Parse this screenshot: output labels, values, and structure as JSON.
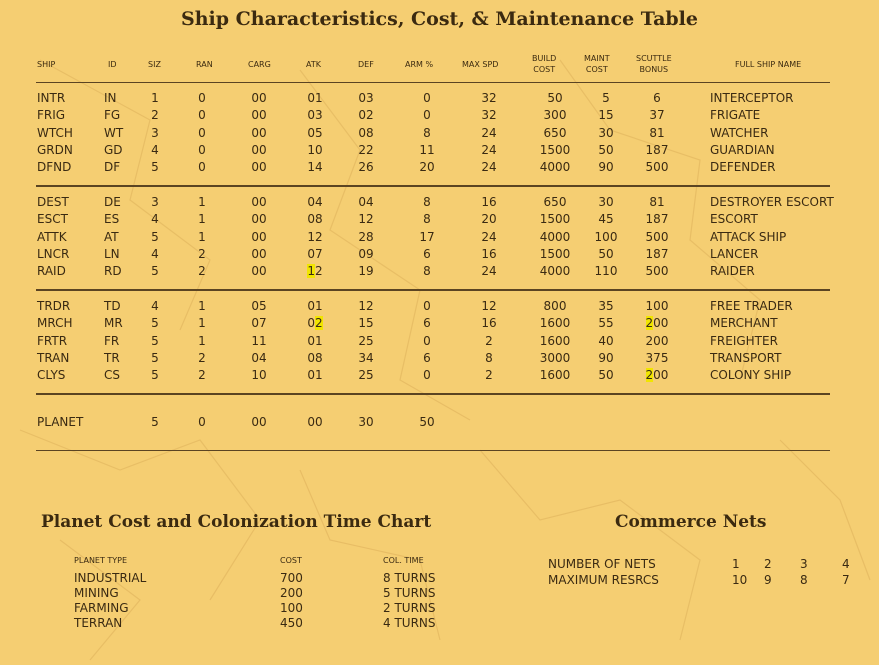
{
  "title": "Ship Characteristics, Cost, & Maintenance Table",
  "headers": {
    "ship": "SHIP",
    "id": "ID",
    "siz": "SIZ",
    "ran": "RAN",
    "carg": "CARG",
    "atk": "ATK",
    "def": "DEF",
    "arm": "ARM %",
    "maxspd": "MAX SPD",
    "build": [
      "BUILD",
      "COST"
    ],
    "maint": [
      "MAINT",
      "COST"
    ],
    "scuttle": [
      "SCUTTLE",
      "BONUS"
    ],
    "fullname": "FULL SHIP NAME"
  },
  "groups": [
    [
      [
        "INTR",
        "IN",
        "1",
        "0",
        "00",
        "01",
        "03",
        "0",
        "32",
        "50",
        "5",
        "6",
        "INTERCEPTOR"
      ],
      [
        "FRIG",
        "FG",
        "2",
        "0",
        "00",
        "03",
        "02",
        "0",
        "32",
        "300",
        "15",
        "37",
        "FRIGATE"
      ],
      [
        "WTCH",
        "WT",
        "3",
        "0",
        "00",
        "05",
        "08",
        "8",
        "24",
        "650",
        "30",
        "81",
        "WATCHER"
      ],
      [
        "GRDN",
        "GD",
        "4",
        "0",
        "00",
        "10",
        "22",
        "11",
        "24",
        "1500",
        "50",
        "187",
        "GUARDIAN"
      ],
      [
        "DFND",
        "DF",
        "5",
        "0",
        "00",
        "14",
        "26",
        "20",
        "24",
        "4000",
        "90",
        "500",
        "DEFENDER"
      ]
    ],
    [
      [
        "DEST",
        "DE",
        "3",
        "1",
        "00",
        "04",
        "04",
        "8",
        "16",
        "650",
        "30",
        "81",
        "DESTROYER ESCORT"
      ],
      [
        "ESCT",
        "ES",
        "4",
        "1",
        "00",
        "08",
        "12",
        "8",
        "20",
        "1500",
        "45",
        "187",
        "ESCORT"
      ],
      [
        "ATTK",
        "AT",
        "5",
        "1",
        "00",
        "12",
        "28",
        "17",
        "24",
        "4000",
        "100",
        "500",
        "ATTACK SHIP"
      ],
      [
        "LNCR",
        "LN",
        "4",
        "2",
        "00",
        "07",
        "09",
        "6",
        "16",
        "1500",
        "50",
        "187",
        "LANCER"
      ],
      [
        "RAID",
        "RD",
        "5",
        "2",
        "00",
        "12",
        "19",
        "8",
        "24",
        "4000",
        "110",
        "500",
        "RAIDER"
      ]
    ],
    [
      [
        "TRDR",
        "TD",
        "4",
        "1",
        "05",
        "01",
        "12",
        "0",
        "12",
        "800",
        "35",
        "100",
        "FREE TRADER"
      ],
      [
        "MRCH",
        "MR",
        "5",
        "1",
        "07",
        "02",
        "15",
        "6",
        "16",
        "1600",
        "55",
        "200",
        "MERCHANT"
      ],
      [
        "FRTR",
        "FR",
        "5",
        "1",
        "11",
        "01",
        "25",
        "0",
        "2",
        "1600",
        "40",
        "200",
        "FREIGHTER"
      ],
      [
        "TRAN",
        "TR",
        "5",
        "2",
        "04",
        "08",
        "34",
        "6",
        "8",
        "3000",
        "90",
        "375",
        "TRANSPORT"
      ],
      [
        "CLYS",
        "CS",
        "5",
        "2",
        "10",
        "01",
        "25",
        "0",
        "2",
        "1600",
        "50",
        "200",
        "COLONY SHIP"
      ]
    ]
  ],
  "planet_row": [
    "PLANET",
    "",
    "5",
    "0",
    "00",
    "00",
    "30",
    "50"
  ],
  "planet_chart": {
    "title": "Planet Cost and Colonization Time Chart",
    "headers": [
      "PLANET TYPE",
      "COST",
      "COL. TIME"
    ],
    "rows": [
      [
        "INDUSTRIAL",
        "700",
        "8 TURNS"
      ],
      [
        "MINING",
        "200",
        "5 TURNS"
      ],
      [
        "FARMING",
        "100",
        "2 TURNS"
      ],
      [
        "TERRAN",
        "450",
        "4 TURNS"
      ]
    ]
  },
  "commerce": {
    "title": "Commerce Nets",
    "rows": [
      [
        "NUMBER OF NETS",
        "1",
        "2",
        "3",
        "4"
      ],
      [
        "MAXIMUM RESRCS",
        "10",
        "9",
        "8",
        "7"
      ]
    ]
  },
  "colors": {
    "background": "#f5ce72",
    "text": "#3a2a12",
    "highlight": "#f1e500"
  }
}
